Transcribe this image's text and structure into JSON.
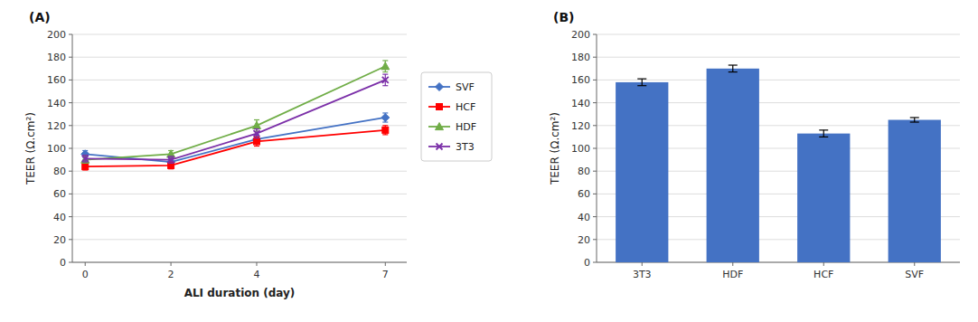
{
  "chart_data": [
    {
      "type": "line",
      "title": "(A)",
      "x_label": "ALI duration (day)",
      "y_label": "TEER (Ω.cm²)",
      "x": [
        0,
        2,
        4,
        7
      ],
      "series": [
        {
          "name": "SVF",
          "color": "#4472C4",
          "marker": "diamond",
          "values": [
            95,
            88,
            108,
            127
          ],
          "errors": [
            3,
            3,
            4,
            4
          ]
        },
        {
          "name": "HCF",
          "color": "#FF0000",
          "marker": "square",
          "values": [
            84,
            85,
            106,
            116
          ],
          "errors": [
            3,
            3,
            4,
            4
          ]
        },
        {
          "name": "HDF",
          "color": "#70AD47",
          "marker": "triangle",
          "values": [
            90,
            95,
            120,
            172
          ],
          "errors": [
            3,
            3,
            5,
            5
          ]
        },
        {
          "name": "3T3",
          "color": "#7B2FA8",
          "marker": "x",
          "values": [
            91,
            90,
            113,
            160
          ],
          "errors": [
            3,
            3,
            4,
            5
          ]
        }
      ],
      "xlim": [
        -0.3,
        7.5
      ],
      "xticks": [
        0,
        2,
        4,
        7
      ],
      "ylim": [
        0,
        200
      ],
      "yticks": [
        0,
        20,
        40,
        60,
        80,
        100,
        120,
        140,
        160,
        180,
        200
      ],
      "grid": true,
      "legend": "right"
    },
    {
      "type": "bar",
      "title": "(B)",
      "y_label": "TEER (Ω.cm²)",
      "categories": [
        "3T3",
        "HDF",
        "HCF",
        "SVF"
      ],
      "values": [
        158,
        170,
        113,
        125
      ],
      "errors": [
        3,
        3,
        3,
        2
      ],
      "color": "#4472C4",
      "ylim": [
        0,
        200
      ],
      "yticks": [
        0,
        20,
        40,
        60,
        80,
        100,
        120,
        140,
        160,
        180,
        200
      ],
      "grid": true
    }
  ]
}
